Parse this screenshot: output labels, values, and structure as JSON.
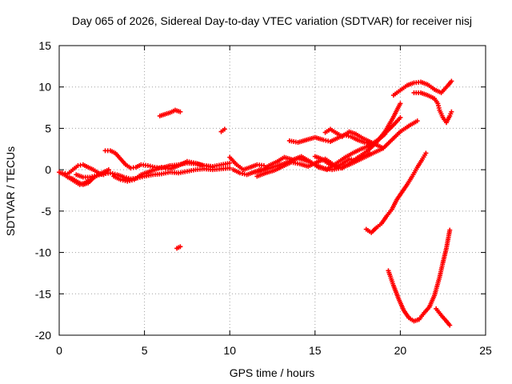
{
  "chart_data": {
    "type": "scatter",
    "title": "Day 065 of 2026, Sidereal Day-to-day VTEC variation (SDTVAR) for receiver nisj",
    "xlabel": "GPS time / hours",
    "ylabel": "SDTVAR / TECUs",
    "xlim": [
      0,
      25
    ],
    "ylim": [
      -20,
      15
    ],
    "xticks": [
      0,
      5,
      10,
      15,
      20,
      25
    ],
    "yticks": [
      -20,
      -15,
      -10,
      -5,
      0,
      5,
      10,
      15
    ],
    "grid": true,
    "marker": "plus",
    "color": "#ff0000",
    "series": [
      {
        "values": [
          [
            0.0,
            -0.3
          ],
          [
            0.3,
            -0.6
          ],
          [
            0.6,
            -1.0
          ],
          [
            0.9,
            -1.4
          ],
          [
            1.2,
            -1.8
          ],
          [
            1.5,
            -1.6
          ],
          [
            1.8,
            -1.2
          ]
        ]
      },
      {
        "values": [
          [
            0.2,
            -0.4
          ],
          [
            0.5,
            -0.5
          ],
          [
            0.8,
            0.0
          ],
          [
            1.1,
            0.5
          ],
          [
            1.4,
            0.6
          ],
          [
            1.7,
            0.3
          ],
          [
            2.0,
            0.0
          ],
          [
            2.3,
            -0.4
          ],
          [
            2.6,
            -0.6
          ]
        ]
      },
      {
        "values": [
          [
            0.5,
            -0.9
          ],
          [
            0.8,
            -1.1
          ],
          [
            1.1,
            -1.5
          ],
          [
            1.4,
            -1.8
          ],
          [
            1.7,
            -1.6
          ],
          [
            2.0,
            -1.0
          ],
          [
            2.3,
            -0.6
          ],
          [
            2.6,
            -0.3
          ],
          [
            2.9,
            0.0
          ]
        ]
      },
      {
        "values": [
          [
            1.0,
            -0.6
          ],
          [
            1.4,
            -0.9
          ],
          [
            1.8,
            -0.9
          ],
          [
            2.2,
            -0.7
          ],
          [
            2.6,
            -0.5
          ],
          [
            3.0,
            -0.4
          ],
          [
            3.4,
            -0.6
          ],
          [
            3.8,
            -0.9
          ],
          [
            4.2,
            -1.1
          ],
          [
            4.6,
            -1.0
          ],
          [
            5.0,
            -0.8
          ],
          [
            5.5,
            -0.6
          ],
          [
            6.0,
            -0.5
          ],
          [
            6.5,
            -0.3
          ],
          [
            7.0,
            -0.4
          ],
          [
            7.5,
            -0.2
          ],
          [
            8.0,
            0.0
          ],
          [
            8.5,
            0.1
          ],
          [
            9.0,
            0.0
          ],
          [
            9.5,
            0.1
          ],
          [
            10.0,
            0.2
          ]
        ]
      },
      {
        "values": [
          [
            2.7,
            2.3
          ],
          [
            3.0,
            2.3
          ],
          [
            3.3,
            2.0
          ],
          [
            3.6,
            1.3
          ],
          [
            3.9,
            0.6
          ],
          [
            4.2,
            0.2
          ],
          [
            4.5,
            0.3
          ],
          [
            4.8,
            0.6
          ],
          [
            5.2,
            0.5
          ],
          [
            5.6,
            0.3
          ],
          [
            6.0,
            0.2
          ],
          [
            6.5,
            0.5
          ],
          [
            7.0,
            0.6
          ],
          [
            7.5,
            0.8
          ],
          [
            8.0,
            0.7
          ],
          [
            8.5,
            0.5
          ],
          [
            9.0,
            0.4
          ],
          [
            9.5,
            0.6
          ],
          [
            10.0,
            0.8
          ]
        ]
      },
      {
        "values": [
          [
            3.2,
            -0.8
          ],
          [
            3.6,
            -1.2
          ],
          [
            4.0,
            -1.4
          ],
          [
            4.4,
            -1.2
          ],
          [
            4.8,
            -0.6
          ],
          [
            5.2,
            -0.3
          ],
          [
            5.6,
            0.0
          ],
          [
            6.0,
            0.3
          ],
          [
            6.5,
            0.1
          ],
          [
            7.0,
            0.5
          ],
          [
            7.5,
            1.0
          ],
          [
            8.0,
            0.8
          ],
          [
            8.5,
            0.5
          ],
          [
            9.0,
            0.3
          ]
        ]
      },
      {
        "values": [
          [
            5.9,
            6.5
          ],
          [
            6.2,
            6.7
          ],
          [
            6.5,
            6.9
          ],
          [
            6.8,
            7.2
          ],
          [
            7.1,
            7.0
          ]
        ]
      },
      {
        "values": [
          [
            9.5,
            4.6
          ],
          [
            9.7,
            4.9
          ]
        ]
      },
      {
        "values": [
          [
            6.9,
            -9.5
          ],
          [
            7.1,
            -9.3
          ]
        ]
      },
      {
        "values": [
          [
            10.0,
            1.5
          ],
          [
            10.4,
            0.6
          ],
          [
            10.8,
            0.0
          ],
          [
            11.2,
            0.3
          ],
          [
            11.6,
            0.6
          ],
          [
            12.0,
            0.5
          ]
        ]
      },
      {
        "values": [
          [
            10.2,
            0.0
          ],
          [
            10.6,
            -0.4
          ],
          [
            11.0,
            -0.6
          ],
          [
            11.4,
            -0.3
          ],
          [
            11.8,
            0.0
          ]
        ]
      },
      {
        "values": [
          [
            11.5,
            -0.3
          ],
          [
            12.0,
            0.0
          ],
          [
            12.5,
            0.3
          ],
          [
            13.0,
            0.6
          ],
          [
            13.5,
            1.0
          ],
          [
            14.0,
            1.4
          ],
          [
            14.5,
            1.1
          ],
          [
            15.0,
            0.6
          ],
          [
            15.5,
            0.2
          ],
          [
            16.0,
            0.0
          ],
          [
            16.5,
            0.2
          ],
          [
            17.0,
            0.6
          ],
          [
            17.5,
            1.1
          ],
          [
            18.0,
            1.6
          ],
          [
            18.5,
            2.1
          ],
          [
            19.0,
            2.6
          ],
          [
            19.5,
            3.6
          ],
          [
            20.0,
            4.6
          ],
          [
            20.5,
            5.3
          ],
          [
            21.0,
            5.9
          ]
        ]
      },
      {
        "values": [
          [
            11.8,
            -0.2
          ],
          [
            12.3,
            0.5
          ],
          [
            12.8,
            1.0
          ],
          [
            13.2,
            1.5
          ],
          [
            13.7,
            1.2
          ],
          [
            14.2,
            1.6
          ],
          [
            14.7,
            1.0
          ],
          [
            15.2,
            0.3
          ],
          [
            15.7,
            0.0
          ],
          [
            16.2,
            0.7
          ],
          [
            16.7,
            1.4
          ],
          [
            17.2,
            2.0
          ],
          [
            17.7,
            2.5
          ],
          [
            18.2,
            2.9
          ],
          [
            18.7,
            3.6
          ],
          [
            19.2,
            4.6
          ],
          [
            19.6,
            5.4
          ],
          [
            20.0,
            6.3
          ]
        ]
      },
      {
        "values": [
          [
            11.6,
            -0.8
          ],
          [
            12.1,
            -0.4
          ],
          [
            12.6,
            -0.1
          ],
          [
            13.1,
            0.4
          ],
          [
            13.6,
            0.9
          ],
          [
            14.1,
            0.7
          ],
          [
            14.6,
            0.4
          ],
          [
            15.1,
            0.9
          ],
          [
            15.6,
            1.3
          ],
          [
            16.1,
            0.6
          ],
          [
            16.6,
            0.2
          ],
          [
            17.1,
            0.9
          ],
          [
            17.6,
            1.6
          ],
          [
            18.1,
            2.3
          ],
          [
            18.6,
            3.3
          ],
          [
            19.1,
            4.6
          ],
          [
            19.5,
            6.0
          ],
          [
            19.8,
            7.2
          ],
          [
            20.0,
            8.0
          ]
        ]
      },
      {
        "values": [
          [
            13.5,
            3.5
          ],
          [
            14.0,
            3.3
          ],
          [
            14.5,
            3.6
          ],
          [
            15.0,
            3.9
          ],
          [
            15.5,
            3.6
          ],
          [
            15.9,
            3.4
          ],
          [
            16.3,
            3.8
          ],
          [
            16.7,
            4.2
          ],
          [
            17.1,
            4.0
          ],
          [
            17.5,
            3.6
          ],
          [
            17.9,
            3.3
          ],
          [
            18.3,
            3.1
          ],
          [
            18.7,
            3.6
          ],
          [
            19.1,
            4.3
          ]
        ]
      },
      {
        "values": [
          [
            15.6,
            4.5
          ],
          [
            15.9,
            4.9
          ],
          [
            16.2,
            4.5
          ],
          [
            16.6,
            4.0
          ],
          [
            17.0,
            4.6
          ],
          [
            17.4,
            4.3
          ],
          [
            17.8,
            3.8
          ],
          [
            18.2,
            3.4
          ],
          [
            18.6,
            3.0
          ],
          [
            19.0,
            2.6
          ]
        ]
      },
      {
        "values": [
          [
            15.0,
            1.6
          ],
          [
            15.4,
            1.3
          ],
          [
            15.8,
            0.7
          ],
          [
            16.2,
            0.3
          ],
          [
            16.6,
            0.7
          ],
          [
            17.0,
            1.3
          ],
          [
            17.4,
            1.1
          ],
          [
            17.8,
            1.6
          ],
          [
            18.2,
            2.0
          ]
        ]
      },
      {
        "values": [
          [
            19.6,
            9.0
          ],
          [
            20.0,
            9.6
          ],
          [
            20.4,
            10.2
          ],
          [
            20.8,
            10.5
          ],
          [
            21.2,
            10.6
          ],
          [
            21.6,
            10.3
          ],
          [
            22.0,
            9.7
          ],
          [
            22.4,
            9.3
          ],
          [
            22.8,
            10.2
          ],
          [
            23.0,
            10.7
          ]
        ]
      },
      {
        "values": [
          [
            20.8,
            9.3
          ],
          [
            21.2,
            9.3
          ],
          [
            21.6,
            9.0
          ],
          [
            22.0,
            8.6
          ],
          [
            22.2,
            8.0
          ],
          [
            22.3,
            7.2
          ],
          [
            22.5,
            6.3
          ],
          [
            22.7,
            5.7
          ],
          [
            22.9,
            6.5
          ],
          [
            23.0,
            7.0
          ]
        ]
      },
      {
        "values": [
          [
            18.0,
            -7.2
          ],
          [
            18.3,
            -7.6
          ],
          [
            18.6,
            -7.0
          ],
          [
            18.9,
            -6.5
          ],
          [
            19.2,
            -5.6
          ],
          [
            19.5,
            -4.8
          ],
          [
            19.8,
            -3.6
          ],
          [
            20.1,
            -2.7
          ],
          [
            20.4,
            -1.8
          ],
          [
            20.7,
            -0.8
          ],
          [
            21.0,
            0.3
          ],
          [
            21.3,
            1.3
          ],
          [
            21.5,
            2.0
          ]
        ]
      },
      {
        "values": [
          [
            19.3,
            -12.2
          ],
          [
            19.6,
            -14.0
          ],
          [
            19.9,
            -15.6
          ],
          [
            20.2,
            -17.0
          ],
          [
            20.5,
            -17.9
          ],
          [
            20.8,
            -18.3
          ],
          [
            21.1,
            -18.1
          ],
          [
            21.4,
            -17.3
          ],
          [
            21.7,
            -16.6
          ],
          [
            22.0,
            -15.2
          ],
          [
            22.3,
            -13.0
          ],
          [
            22.5,
            -11.2
          ],
          [
            22.7,
            -9.5
          ],
          [
            22.9,
            -7.3
          ]
        ]
      },
      {
        "values": [
          [
            22.1,
            -16.8
          ],
          [
            22.4,
            -17.6
          ],
          [
            22.7,
            -18.3
          ],
          [
            22.9,
            -18.8
          ]
        ]
      }
    ]
  }
}
